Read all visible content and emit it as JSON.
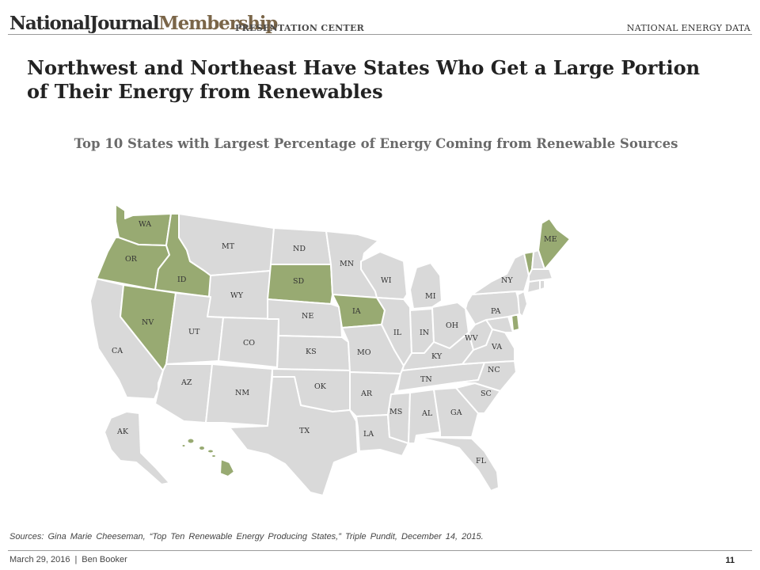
{
  "header": {
    "brand_national_journal": "NationalJournal",
    "brand_membership": "Membership",
    "presentation_center": "PRESENTATION CENTER",
    "section": "NATIONAL ENERGY DATA"
  },
  "title": "Northwest and Northeast Have States Who Get a Large Portion of Their Energy from Renewables",
  "subtitle": "Top 10 States with Largest Percentage of Energy Coming from Renewable Sources",
  "colors": {
    "highlight": "#98aa72",
    "base": "#d9d9d9",
    "border": "#ffffff"
  },
  "map": {
    "highlighted_states": [
      "WA",
      "OR",
      "ID",
      "NV",
      "SD",
      "IA",
      "ME",
      "VT",
      "DE",
      "HI"
    ],
    "state_labels": {
      "WA": "WA",
      "OR": "OR",
      "ID": "ID",
      "CA": "CA",
      "NV": "NV",
      "MT": "MT",
      "WY": "WY",
      "UT": "UT",
      "CO": "CO",
      "AZ": "AZ",
      "NM": "NM",
      "ND": "ND",
      "SD": "SD",
      "NE": "NE",
      "KS": "KS",
      "OK": "OK",
      "TX": "TX",
      "MN": "MN",
      "IA": "IA",
      "MO": "MO",
      "AR": "AR",
      "LA": "LA",
      "WI": "WI",
      "IL": "IL",
      "MI": "MI",
      "IN": "IN",
      "OH": "OH",
      "KY": "KY",
      "TN": "TN",
      "MS": "MS",
      "AL": "AL",
      "GA": "GA",
      "FL": "FL",
      "SC": "SC",
      "NC": "NC",
      "VA": "VA",
      "WV": "WV",
      "PA": "PA",
      "NY": "NY",
      "ME": "ME",
      "AK": "AK"
    }
  },
  "source": "Sources: Gina Marie Cheeseman, “Top Ten Renewable Energy Producing States,” Triple Pundit, December 14, 2015.",
  "footer": {
    "date": "March 29, 2016",
    "separator": "|",
    "author": "Ben Booker",
    "page": "11"
  }
}
